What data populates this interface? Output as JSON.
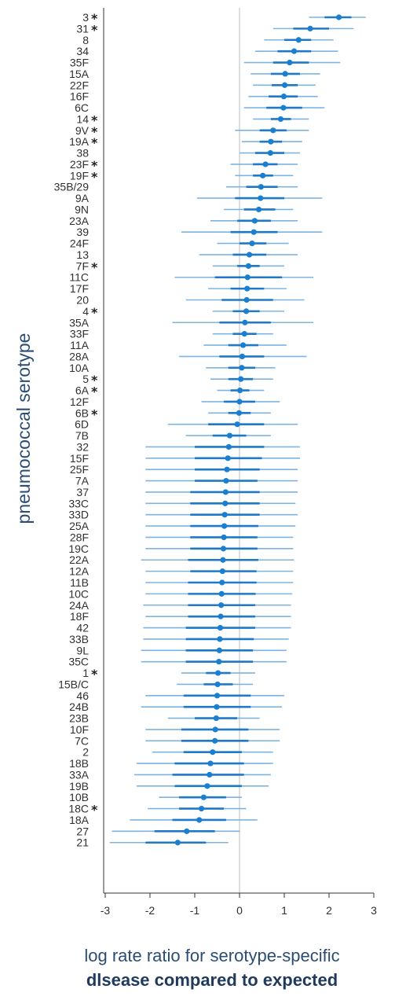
{
  "chart_data": {
    "type": "forest",
    "ylabel": "pneumococcal serotype",
    "xlabel_line1": "log rate ratio for serotype-specific",
    "xlabel_line2": "dlsease compared to expected",
    "xlim": [
      -3.2,
      3.0
    ],
    "xticks": [
      -3,
      -2,
      -1,
      0,
      1,
      2,
      3
    ],
    "reference_line": 0,
    "colors": {
      "point": "#1a7fd0",
      "inner_ci": "#1f78c8",
      "outer_ci": "#7fb4e2",
      "ref_line": "#bdbdbd",
      "axis": "#333333"
    },
    "rows": [
      {
        "serotype": "3",
        "star": true,
        "estimate": 2.22,
        "ci50": [
          1.9,
          2.5
        ],
        "ci95": [
          1.55,
          2.82
        ]
      },
      {
        "serotype": "31",
        "star": true,
        "estimate": 1.58,
        "ci50": [
          1.2,
          2.0
        ],
        "ci95": [
          0.75,
          2.55
        ]
      },
      {
        "serotype": "8",
        "star": false,
        "estimate": 1.32,
        "ci50": [
          1.0,
          1.6
        ],
        "ci95": [
          0.55,
          2.1
        ]
      },
      {
        "serotype": "34",
        "star": false,
        "estimate": 1.22,
        "ci50": [
          0.85,
          1.6
        ],
        "ci95": [
          0.35,
          2.2
        ]
      },
      {
        "serotype": "35F",
        "star": false,
        "estimate": 1.12,
        "ci50": [
          0.75,
          1.55
        ],
        "ci95": [
          0.1,
          2.25
        ]
      },
      {
        "serotype": "15A",
        "star": false,
        "estimate": 1.02,
        "ci50": [
          0.7,
          1.35
        ],
        "ci95": [
          0.25,
          1.8
        ]
      },
      {
        "serotype": "22F",
        "star": false,
        "estimate": 1.01,
        "ci50": [
          0.72,
          1.3
        ],
        "ci95": [
          0.3,
          1.7
        ]
      },
      {
        "serotype": "16F",
        "star": false,
        "estimate": 0.99,
        "ci50": [
          0.65,
          1.3
        ],
        "ci95": [
          0.2,
          1.75
        ]
      },
      {
        "serotype": "6C",
        "star": false,
        "estimate": 0.98,
        "ci50": [
          0.6,
          1.4
        ],
        "ci95": [
          0.1,
          1.9
        ]
      },
      {
        "serotype": "14",
        "star": true,
        "estimate": 0.92,
        "ci50": [
          0.7,
          1.15
        ],
        "ci95": [
          0.3,
          1.55
        ]
      },
      {
        "serotype": "9V",
        "star": true,
        "estimate": 0.75,
        "ci50": [
          0.45,
          1.05
        ],
        "ci95": [
          -0.1,
          1.55
        ]
      },
      {
        "serotype": "19A",
        "star": true,
        "estimate": 0.7,
        "ci50": [
          0.45,
          0.95
        ],
        "ci95": [
          0.05,
          1.4
        ]
      },
      {
        "serotype": "38",
        "star": false,
        "estimate": 0.69,
        "ci50": [
          0.35,
          1.0
        ],
        "ci95": [
          0.0,
          1.35
        ]
      },
      {
        "serotype": "23F",
        "star": true,
        "estimate": 0.58,
        "ci50": [
          0.3,
          0.85
        ],
        "ci95": [
          -0.2,
          1.3
        ]
      },
      {
        "serotype": "19F",
        "star": true,
        "estimate": 0.52,
        "ci50": [
          0.3,
          0.75
        ],
        "ci95": [
          -0.1,
          1.2
        ]
      },
      {
        "serotype": "35B/29",
        "star": false,
        "estimate": 0.48,
        "ci50": [
          0.15,
          0.85
        ],
        "ci95": [
          -0.3,
          1.3
        ]
      },
      {
        "serotype": "9A",
        "star": false,
        "estimate": 0.47,
        "ci50": [
          -0.1,
          1.0
        ],
        "ci95": [
          -0.95,
          1.85
        ]
      },
      {
        "serotype": "9N",
        "star": false,
        "estimate": 0.43,
        "ci50": [
          0.1,
          0.8
        ],
        "ci95": [
          -0.35,
          1.2
        ]
      },
      {
        "serotype": "23A",
        "star": false,
        "estimate": 0.34,
        "ci50": [
          -0.05,
          0.7
        ],
        "ci95": [
          -0.65,
          1.3
        ]
      },
      {
        "serotype": "39",
        "star": false,
        "estimate": 0.32,
        "ci50": [
          -0.2,
          0.85
        ],
        "ci95": [
          -1.3,
          1.85
        ]
      },
      {
        "serotype": "24F",
        "star": false,
        "estimate": 0.28,
        "ci50": [
          0.0,
          0.6
        ],
        "ci95": [
          -0.5,
          1.1
        ]
      },
      {
        "serotype": "13",
        "star": false,
        "estimate": 0.22,
        "ci50": [
          -0.15,
          0.6
        ],
        "ci95": [
          -0.9,
          1.3
        ]
      },
      {
        "serotype": "7F",
        "star": true,
        "estimate": 0.2,
        "ci50": [
          -0.05,
          0.45
        ],
        "ci95": [
          -0.6,
          1.0
        ]
      },
      {
        "serotype": "11C",
        "star": false,
        "estimate": 0.18,
        "ci50": [
          -0.55,
          0.95
        ],
        "ci95": [
          -1.45,
          1.65
        ]
      },
      {
        "serotype": "17F",
        "star": false,
        "estimate": 0.17,
        "ci50": [
          -0.2,
          0.55
        ],
        "ci95": [
          -0.7,
          1.05
        ]
      },
      {
        "serotype": "20",
        "star": false,
        "estimate": 0.16,
        "ci50": [
          -0.4,
          0.75
        ],
        "ci95": [
          -1.2,
          1.45
        ]
      },
      {
        "serotype": "4",
        "star": true,
        "estimate": 0.15,
        "ci50": [
          -0.15,
          0.45
        ],
        "ci95": [
          -0.6,
          1.0
        ]
      },
      {
        "serotype": "35A",
        "star": false,
        "estimate": 0.12,
        "ci50": [
          -0.45,
          0.7
        ],
        "ci95": [
          -1.5,
          1.65
        ]
      },
      {
        "serotype": "33F",
        "star": false,
        "estimate": 0.11,
        "ci50": [
          -0.15,
          0.38
        ],
        "ci95": [
          -0.6,
          0.75
        ]
      },
      {
        "serotype": "11A",
        "star": false,
        "estimate": 0.08,
        "ci50": [
          -0.25,
          0.42
        ],
        "ci95": [
          -0.8,
          1.05
        ]
      },
      {
        "serotype": "28A",
        "star": false,
        "estimate": 0.06,
        "ci50": [
          -0.45,
          0.55
        ],
        "ci95": [
          -1.35,
          1.5
        ]
      },
      {
        "serotype": "10A",
        "star": false,
        "estimate": 0.05,
        "ci50": [
          -0.25,
          0.35
        ],
        "ci95": [
          -0.75,
          0.8
        ]
      },
      {
        "serotype": "5",
        "star": true,
        "estimate": 0.03,
        "ci50": [
          -0.25,
          0.3
        ],
        "ci95": [
          -0.65,
          0.75
        ]
      },
      {
        "serotype": "6A",
        "star": true,
        "estimate": 0.01,
        "ci50": [
          -0.2,
          0.22
        ],
        "ci95": [
          -0.5,
          0.55
        ]
      },
      {
        "serotype": "12F",
        "star": false,
        "estimate": 0.0,
        "ci50": [
          -0.35,
          0.35
        ],
        "ci95": [
          -0.85,
          0.9
        ]
      },
      {
        "serotype": "6B",
        "star": true,
        "estimate": -0.01,
        "ci50": [
          -0.25,
          0.25
        ],
        "ci95": [
          -0.7,
          0.7
        ]
      },
      {
        "serotype": "6D",
        "star": false,
        "estimate": -0.05,
        "ci50": [
          -0.7,
          0.55
        ],
        "ci95": [
          -1.6,
          1.3
        ]
      },
      {
        "serotype": "7B",
        "star": false,
        "estimate": -0.22,
        "ci50": [
          -0.6,
          0.15
        ],
        "ci95": [
          -1.2,
          0.7
        ]
      },
      {
        "serotype": "32",
        "star": false,
        "estimate": -0.24,
        "ci50": [
          -1.0,
          0.55
        ],
        "ci95": [
          -2.1,
          1.35
        ]
      },
      {
        "serotype": "15F",
        "star": false,
        "estimate": -0.26,
        "ci50": [
          -1.0,
          0.5
        ],
        "ci95": [
          -2.1,
          1.35
        ]
      },
      {
        "serotype": "25F",
        "star": false,
        "estimate": -0.28,
        "ci50": [
          -1.0,
          0.45
        ],
        "ci95": [
          -2.1,
          1.3
        ]
      },
      {
        "serotype": "7A",
        "star": false,
        "estimate": -0.3,
        "ci50": [
          -1.0,
          0.4
        ],
        "ci95": [
          -2.1,
          1.3
        ]
      },
      {
        "serotype": "37",
        "star": false,
        "estimate": -0.31,
        "ci50": [
          -1.1,
          0.45
        ],
        "ci95": [
          -2.1,
          1.3
        ]
      },
      {
        "serotype": "33C",
        "star": false,
        "estimate": -0.32,
        "ci50": [
          -1.1,
          0.45
        ],
        "ci95": [
          -2.1,
          1.25
        ]
      },
      {
        "serotype": "33D",
        "star": false,
        "estimate": -0.33,
        "ci50": [
          -1.1,
          0.45
        ],
        "ci95": [
          -2.1,
          1.3
        ]
      },
      {
        "serotype": "25A",
        "star": false,
        "estimate": -0.34,
        "ci50": [
          -1.1,
          0.42
        ],
        "ci95": [
          -2.1,
          1.25
        ]
      },
      {
        "serotype": "28F",
        "star": false,
        "estimate": -0.35,
        "ci50": [
          -1.1,
          0.4
        ],
        "ci95": [
          -2.1,
          1.2
        ]
      },
      {
        "serotype": "19C",
        "star": false,
        "estimate": -0.36,
        "ci50": [
          -1.1,
          0.4
        ],
        "ci95": [
          -2.1,
          1.2
        ]
      },
      {
        "serotype": "22A",
        "star": false,
        "estimate": -0.37,
        "ci50": [
          -1.15,
          0.42
        ],
        "ci95": [
          -2.2,
          1.22
        ]
      },
      {
        "serotype": "12A",
        "star": false,
        "estimate": -0.38,
        "ci50": [
          -1.1,
          0.38
        ],
        "ci95": [
          -2.1,
          1.2
        ]
      },
      {
        "serotype": "11B",
        "star": false,
        "estimate": -0.39,
        "ci50": [
          -1.15,
          0.38
        ],
        "ci95": [
          -2.1,
          1.2
        ]
      },
      {
        "serotype": "10C",
        "star": false,
        "estimate": -0.4,
        "ci50": [
          -1.15,
          0.36
        ],
        "ci95": [
          -2.1,
          1.18
        ]
      },
      {
        "serotype": "24A",
        "star": false,
        "estimate": -0.41,
        "ci50": [
          -1.15,
          0.35
        ],
        "ci95": [
          -2.15,
          1.15
        ]
      },
      {
        "serotype": "18F",
        "star": false,
        "estimate": -0.42,
        "ci50": [
          -1.15,
          0.35
        ],
        "ci95": [
          -2.1,
          1.15
        ]
      },
      {
        "serotype": "42",
        "star": false,
        "estimate": -0.43,
        "ci50": [
          -1.2,
          0.35
        ],
        "ci95": [
          -2.15,
          1.15
        ]
      },
      {
        "serotype": "33B",
        "star": false,
        "estimate": -0.44,
        "ci50": [
          -1.2,
          0.32
        ],
        "ci95": [
          -2.15,
          1.1
        ]
      },
      {
        "serotype": "9L",
        "star": false,
        "estimate": -0.45,
        "ci50": [
          -1.2,
          0.3
        ],
        "ci95": [
          -2.2,
          1.05
        ]
      },
      {
        "serotype": "35C",
        "star": false,
        "estimate": -0.46,
        "ci50": [
          -1.2,
          0.3
        ],
        "ci95": [
          -2.2,
          1.05
        ]
      },
      {
        "serotype": "1",
        "star": true,
        "estimate": -0.48,
        "ci50": [
          -0.75,
          -0.2
        ],
        "ci95": [
          -1.3,
          0.35
        ]
      },
      {
        "serotype": "15B/C",
        "star": false,
        "estimate": -0.49,
        "ci50": [
          -0.8,
          -0.15
        ],
        "ci95": [
          -1.4,
          0.3
        ]
      },
      {
        "serotype": "46",
        "star": false,
        "estimate": -0.5,
        "ci50": [
          -1.25,
          0.25
        ],
        "ci95": [
          -2.1,
          1.0
        ]
      },
      {
        "serotype": "24B",
        "star": false,
        "estimate": -0.51,
        "ci50": [
          -1.25,
          0.25
        ],
        "ci95": [
          -2.2,
          0.95
        ]
      },
      {
        "serotype": "23B",
        "star": false,
        "estimate": -0.52,
        "ci50": [
          -1.0,
          -0.05
        ],
        "ci95": [
          -1.6,
          0.45
        ]
      },
      {
        "serotype": "10F",
        "star": false,
        "estimate": -0.54,
        "ci50": [
          -1.3,
          0.2
        ],
        "ci95": [
          -2.1,
          0.9
        ]
      },
      {
        "serotype": "7C",
        "star": false,
        "estimate": -0.55,
        "ci50": [
          -1.3,
          0.2
        ],
        "ci95": [
          -2.1,
          0.9
        ]
      },
      {
        "serotype": "2",
        "star": false,
        "estimate": -0.6,
        "ci50": [
          -1.25,
          0.05
        ],
        "ci95": [
          -1.95,
          0.75
        ]
      },
      {
        "serotype": "18B",
        "star": false,
        "estimate": -0.65,
        "ci50": [
          -1.45,
          0.1
        ],
        "ci95": [
          -2.3,
          0.75
        ]
      },
      {
        "serotype": "33A",
        "star": false,
        "estimate": -0.67,
        "ci50": [
          -1.5,
          0.1
        ],
        "ci95": [
          -2.35,
          0.7
        ]
      },
      {
        "serotype": "19B",
        "star": false,
        "estimate": -0.72,
        "ci50": [
          -1.45,
          0.05
        ],
        "ci95": [
          -2.3,
          0.65
        ]
      },
      {
        "serotype": "10B",
        "star": false,
        "estimate": -0.8,
        "ci50": [
          -1.35,
          -0.3
        ],
        "ci95": [
          -1.8,
          0.05
        ]
      },
      {
        "serotype": "18C",
        "star": true,
        "estimate": -0.85,
        "ci50": [
          -1.35,
          -0.35
        ],
        "ci95": [
          -2.05,
          0.15
        ]
      },
      {
        "serotype": "18A",
        "star": false,
        "estimate": -0.9,
        "ci50": [
          -1.5,
          -0.3
        ],
        "ci95": [
          -2.45,
          0.4
        ]
      },
      {
        "serotype": "27",
        "star": false,
        "estimate": -1.18,
        "ci50": [
          -1.9,
          -0.55
        ],
        "ci95": [
          -2.85,
          0.0
        ]
      },
      {
        "serotype": "21",
        "star": false,
        "estimate": -1.38,
        "ci50": [
          -2.1,
          -0.75
        ],
        "ci95": [
          -2.9,
          -0.25
        ]
      }
    ]
  }
}
